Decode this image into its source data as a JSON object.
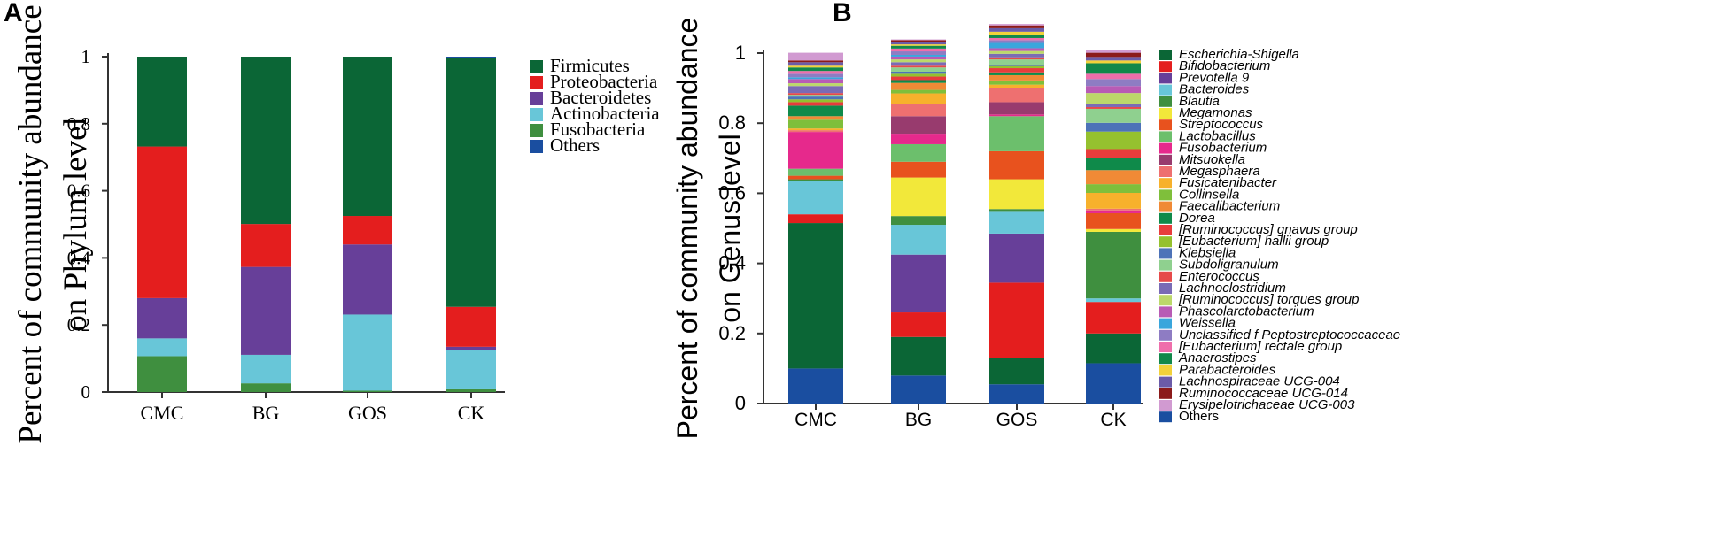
{
  "figure": {
    "panel_a_letter": "A",
    "panel_b_letter": "B"
  },
  "chart_data": [
    {
      "type": "bar",
      "stacked": true,
      "panel": "A",
      "ylabel_lines": [
        "Percent of community abundance",
        "on Phylum level"
      ],
      "categories": [
        "CMC",
        "BG",
        "GOS",
        "CK"
      ],
      "ylim": [
        0,
        1
      ],
      "yticks": [
        0,
        0.2,
        0.4,
        0.6,
        0.8,
        1
      ],
      "ytick_labels": [
        "0",
        "0.2",
        "0.4",
        "0.6",
        "0.8",
        "1"
      ],
      "legend_position": "right",
      "series": [
        {
          "name": "Fusobacteria",
          "color": "#3f8f3f",
          "values": [
            0.107,
            0.026,
            0.004,
            0.008
          ]
        },
        {
          "name": "Actinobacteria",
          "color": "#68c6d8",
          "values": [
            0.053,
            0.085,
            0.227,
            0.116
          ]
        },
        {
          "name": "Bacteroidetes",
          "color": "#673f99",
          "values": [
            0.12,
            0.262,
            0.209,
            0.011
          ]
        },
        {
          "name": "Proteobacteria",
          "color": "#e41e1e",
          "values": [
            0.452,
            0.128,
            0.085,
            0.119
          ]
        },
        {
          "name": "Firmicutes",
          "color": "#0b6636",
          "values": [
            0.268,
            0.499,
            0.475,
            0.741
          ]
        },
        {
          "name": "Others",
          "color": "#1a4ea0",
          "values": [
            0.0,
            0.0,
            0.0,
            0.005
          ]
        }
      ],
      "legend_order": [
        "Firmicutes",
        "Proteobacteria",
        "Bacteroidetes",
        "Actinobacteria",
        "Fusobacteria",
        "Others"
      ]
    },
    {
      "type": "bar",
      "stacked": true,
      "panel": "B",
      "ylabel_lines": [
        "Percent of community abundance",
        "on Genus level"
      ],
      "categories": [
        "CMC",
        "BG",
        "GOS",
        "CK"
      ],
      "ylim": [
        0,
        1
      ],
      "yticks": [
        0,
        0.2,
        0.4,
        0.6,
        0.8,
        1
      ],
      "ytick_labels": [
        "0",
        "0.2",
        "0.4",
        "0.6",
        "0.8",
        "1"
      ],
      "legend_position": "right",
      "series": [
        {
          "name": "Others",
          "color": "#1a4ea0",
          "values": [
            0.1,
            0.08,
            0.055,
            0.115
          ]
        },
        {
          "name": "Escherichia-Shigella",
          "color": "#0b6636",
          "values": [
            0.415,
            0.11,
            0.075,
            0.085
          ]
        },
        {
          "name": "Bifidobacterium",
          "color": "#e41e1e",
          "values": [
            0.025,
            0.07,
            0.215,
            0.09
          ]
        },
        {
          "name": "Prevotella 9",
          "color": "#673f99",
          "values": [
            0.0,
            0.165,
            0.14,
            0.0
          ]
        },
        {
          "name": "Bacteroides",
          "color": "#68c6d8",
          "values": [
            0.095,
            0.085,
            0.062,
            0.01
          ]
        },
        {
          "name": "Blautia",
          "color": "#3f8f3f",
          "values": [
            0.005,
            0.025,
            0.008,
            0.19
          ]
        },
        {
          "name": "Megamonas",
          "color": "#f2e83a",
          "values": [
            0.0,
            0.11,
            0.085,
            0.008
          ]
        },
        {
          "name": "Streptococcus",
          "color": "#e8521e",
          "values": [
            0.01,
            0.045,
            0.08,
            0.045
          ]
        },
        {
          "name": "Lactobacillus",
          "color": "#6cbf6c",
          "values": [
            0.02,
            0.05,
            0.1,
            0.0
          ]
        },
        {
          "name": "Fusobacterium",
          "color": "#e6298c",
          "values": [
            0.105,
            0.03,
            0.005,
            0.008
          ]
        },
        {
          "name": "Mitsuokella",
          "color": "#983b6e",
          "values": [
            0.0,
            0.05,
            0.035,
            0.0
          ]
        },
        {
          "name": "Megasphaera",
          "color": "#ee7070",
          "values": [
            0.005,
            0.035,
            0.04,
            0.005
          ]
        },
        {
          "name": "Fusicatenibacter",
          "color": "#f7b12c",
          "values": [
            0.005,
            0.03,
            0.01,
            0.045
          ]
        },
        {
          "name": "Collinsella",
          "color": "#7fbf3b",
          "values": [
            0.025,
            0.01,
            0.012,
            0.025
          ]
        },
        {
          "name": "Faecalibacterium",
          "color": "#f08a36",
          "values": [
            0.01,
            0.02,
            0.015,
            0.04
          ]
        },
        {
          "name": "Dorea",
          "color": "#0f8a4a",
          "values": [
            0.03,
            0.008,
            0.008,
            0.035
          ]
        },
        {
          "name": "[Ruminococcus] gnavus group",
          "color": "#e83c3c",
          "values": [
            0.01,
            0.01,
            0.012,
            0.025
          ]
        },
        {
          "name": "[Eubacterium] hallii group",
          "color": "#95c12f",
          "values": [
            0.008,
            0.008,
            0.006,
            0.05
          ]
        },
        {
          "name": "Klebsiella",
          "color": "#4d73b8",
          "values": [
            0.008,
            0.006,
            0.004,
            0.025
          ]
        },
        {
          "name": "Subdoligranulum",
          "color": "#8fd08f",
          "values": [
            0.005,
            0.012,
            0.015,
            0.04
          ]
        },
        {
          "name": "Enterococcus",
          "color": "#e64a4a",
          "values": [
            0.005,
            0.005,
            0.006,
            0.005
          ]
        },
        {
          "name": "Lachnoclostridium",
          "color": "#7a6bb5",
          "values": [
            0.02,
            0.01,
            0.01,
            0.01
          ]
        },
        {
          "name": "[Ruminococcus] torques group",
          "color": "#bcd86a",
          "values": [
            0.008,
            0.008,
            0.008,
            0.03
          ]
        },
        {
          "name": "Phascolarctobacterium",
          "color": "#b85bb5",
          "values": [
            0.012,
            0.008,
            0.008,
            0.02
          ]
        },
        {
          "name": "Weissella",
          "color": "#3aa6dc",
          "values": [
            0.005,
            0.005,
            0.015,
            0.0
          ]
        },
        {
          "name": "Unclassified f Peptostreptococcaceae",
          "color": "#8e7cc3",
          "values": [
            0.01,
            0.01,
            0.008,
            0.02
          ]
        },
        {
          "name": "[Eubacterium] rectale group",
          "color": "#ef6eab",
          "values": [
            0.008,
            0.008,
            0.006,
            0.015
          ]
        },
        {
          "name": "Anaerostipes",
          "color": "#12884a",
          "values": [
            0.01,
            0.008,
            0.01,
            0.03
          ]
        },
        {
          "name": "Parabacteroides",
          "color": "#f2d13a",
          "values": [
            0.005,
            0.004,
            0.008,
            0.008
          ]
        },
        {
          "name": "Lachnospiraceae UCG-004",
          "color": "#6b5ba8",
          "values": [
            0.01,
            0.006,
            0.01,
            0.01
          ]
        },
        {
          "name": "Ruminococcaceae UCG-014",
          "color": "#8b1a1a",
          "values": [
            0.005,
            0.006,
            0.008,
            0.012
          ]
        },
        {
          "name": "Erysipelotrichaceae UCG-003",
          "color": "#d19ad1",
          "values": [
            0.022,
            0.002,
            0.004,
            0.009
          ]
        }
      ],
      "legend_order": [
        "Escherichia-Shigella",
        "Bifidobacterium",
        "Prevotella 9",
        "Bacteroides",
        "Blautia",
        "Megamonas",
        "Streptococcus",
        "Lactobacillus",
        "Fusobacterium",
        "Mitsuokella",
        "Megasphaera",
        "Fusicatenibacter",
        "Collinsella",
        "Faecalibacterium",
        "Dorea",
        "[Ruminococcus] gnavus group",
        "[Eubacterium] hallii group",
        "Klebsiella",
        "Subdoligranulum",
        "Enterococcus",
        "Lachnoclostridium",
        "[Ruminococcus] torques group",
        "Phascolarctobacterium",
        "Weissella",
        "Unclassified f Peptostreptococcaceae",
        "[Eubacterium] rectale group",
        "Anaerostipes",
        "Parabacteroides",
        "Lachnospiraceae UCG-004",
        "Ruminococcaceae UCG-014",
        "Erysipelotrichaceae UCG-003",
        "Others"
      ],
      "legend_bottom_up": false
    }
  ]
}
